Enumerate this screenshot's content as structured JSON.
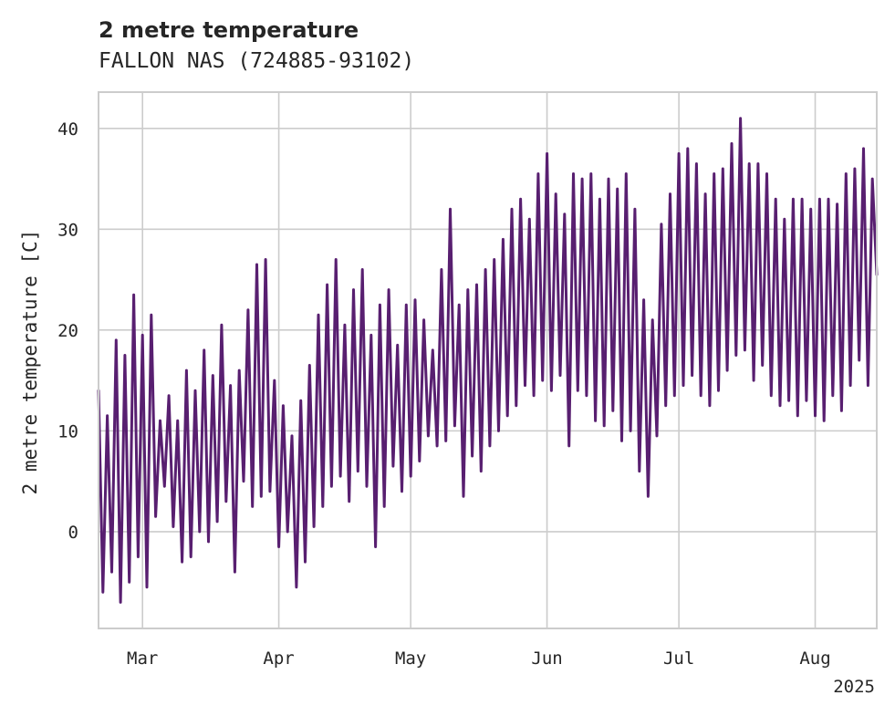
{
  "chart_data": {
    "type": "line",
    "title": "2 metre temperature",
    "subtitle": "FALLON NAS (724885-93102)",
    "ylabel": "2 metre temperature [C]",
    "xlabel": "",
    "x_offset_label": "2025",
    "xlim": [
      "2025-02-19",
      "2025-08-15"
    ],
    "ylim": [
      -9.6,
      43.6
    ],
    "x_ticks": [
      {
        "date": "2025-03-01",
        "label": "Mar"
      },
      {
        "date": "2025-04-01",
        "label": "Apr"
      },
      {
        "date": "2025-05-01",
        "label": "May"
      },
      {
        "date": "2025-06-01",
        "label": "Jun"
      },
      {
        "date": "2025-07-01",
        "label": "Jul"
      },
      {
        "date": "2025-08-01",
        "label": "Aug"
      }
    ],
    "y_ticks": [
      0,
      10,
      20,
      30,
      40
    ],
    "grid": true,
    "legend": "none",
    "series": [
      {
        "color": "#581f70",
        "points": [
          [
            "2025-02-19",
            14.0
          ],
          [
            "2025-02-20",
            -6.0
          ],
          [
            "2025-02-21",
            11.5
          ],
          [
            "2025-02-22",
            -4.0
          ],
          [
            "2025-02-23",
            19.0
          ],
          [
            "2025-02-24",
            -7.0
          ],
          [
            "2025-02-25",
            17.5
          ],
          [
            "2025-02-26",
            -5.0
          ],
          [
            "2025-02-27",
            23.5
          ],
          [
            "2025-02-28",
            -2.5
          ],
          [
            "2025-03-01",
            19.5
          ],
          [
            "2025-03-02",
            -5.5
          ],
          [
            "2025-03-03",
            21.5
          ],
          [
            "2025-03-04",
            1.5
          ],
          [
            "2025-03-05",
            11.0
          ],
          [
            "2025-03-06",
            4.5
          ],
          [
            "2025-03-07",
            13.5
          ],
          [
            "2025-03-08",
            0.5
          ],
          [
            "2025-03-09",
            11.0
          ],
          [
            "2025-03-10",
            -3.0
          ],
          [
            "2025-03-11",
            16.0
          ],
          [
            "2025-03-12",
            -2.5
          ],
          [
            "2025-03-13",
            14.0
          ],
          [
            "2025-03-14",
            0.0
          ],
          [
            "2025-03-15",
            18.0
          ],
          [
            "2025-03-16",
            -1.0
          ],
          [
            "2025-03-17",
            15.5
          ],
          [
            "2025-03-18",
            1.0
          ],
          [
            "2025-03-19",
            20.5
          ],
          [
            "2025-03-20",
            3.0
          ],
          [
            "2025-03-21",
            14.5
          ],
          [
            "2025-03-22",
            -4.0
          ],
          [
            "2025-03-23",
            16.0
          ],
          [
            "2025-03-24",
            5.0
          ],
          [
            "2025-03-25",
            22.0
          ],
          [
            "2025-03-26",
            2.5
          ],
          [
            "2025-03-27",
            26.5
          ],
          [
            "2025-03-28",
            3.5
          ],
          [
            "2025-03-29",
            27.0
          ],
          [
            "2025-03-30",
            4.0
          ],
          [
            "2025-03-31",
            15.0
          ],
          [
            "2025-04-01",
            -1.5
          ],
          [
            "2025-04-02",
            12.5
          ],
          [
            "2025-04-03",
            0.0
          ],
          [
            "2025-04-04",
            9.5
          ],
          [
            "2025-04-05",
            -5.5
          ],
          [
            "2025-04-06",
            13.0
          ],
          [
            "2025-04-07",
            -3.0
          ],
          [
            "2025-04-08",
            16.5
          ],
          [
            "2025-04-09",
            0.5
          ],
          [
            "2025-04-10",
            21.5
          ],
          [
            "2025-04-11",
            2.5
          ],
          [
            "2025-04-12",
            24.5
          ],
          [
            "2025-04-13",
            4.5
          ],
          [
            "2025-04-14",
            27.0
          ],
          [
            "2025-04-15",
            5.5
          ],
          [
            "2025-04-16",
            20.5
          ],
          [
            "2025-04-17",
            3.0
          ],
          [
            "2025-04-18",
            24.0
          ],
          [
            "2025-04-19",
            6.0
          ],
          [
            "2025-04-20",
            26.0
          ],
          [
            "2025-04-21",
            4.5
          ],
          [
            "2025-04-22",
            19.5
          ],
          [
            "2025-04-23",
            -1.5
          ],
          [
            "2025-04-24",
            22.5
          ],
          [
            "2025-04-25",
            2.5
          ],
          [
            "2025-04-26",
            24.0
          ],
          [
            "2025-04-27",
            6.5
          ],
          [
            "2025-04-28",
            18.5
          ],
          [
            "2025-04-29",
            4.0
          ],
          [
            "2025-04-30",
            22.5
          ],
          [
            "2025-05-01",
            5.5
          ],
          [
            "2025-05-02",
            23.0
          ],
          [
            "2025-05-03",
            7.0
          ],
          [
            "2025-05-04",
            21.0
          ],
          [
            "2025-05-05",
            9.5
          ],
          [
            "2025-05-06",
            18.0
          ],
          [
            "2025-05-07",
            8.5
          ],
          [
            "2025-05-08",
            26.0
          ],
          [
            "2025-05-09",
            9.0
          ],
          [
            "2025-05-10",
            32.0
          ],
          [
            "2025-05-11",
            10.5
          ],
          [
            "2025-05-12",
            22.5
          ],
          [
            "2025-05-13",
            3.5
          ],
          [
            "2025-05-14",
            24.0
          ],
          [
            "2025-05-15",
            7.5
          ],
          [
            "2025-05-16",
            24.5
          ],
          [
            "2025-05-17",
            6.0
          ],
          [
            "2025-05-18",
            26.0
          ],
          [
            "2025-05-19",
            8.5
          ],
          [
            "2025-05-20",
            27.0
          ],
          [
            "2025-05-21",
            10.0
          ],
          [
            "2025-05-22",
            29.0
          ],
          [
            "2025-05-23",
            11.5
          ],
          [
            "2025-05-24",
            32.0
          ],
          [
            "2025-05-25",
            12.5
          ],
          [
            "2025-05-26",
            33.0
          ],
          [
            "2025-05-27",
            14.5
          ],
          [
            "2025-05-28",
            31.0
          ],
          [
            "2025-05-29",
            13.5
          ],
          [
            "2025-05-30",
            35.5
          ],
          [
            "2025-05-31",
            15.0
          ],
          [
            "2025-06-01",
            37.5
          ],
          [
            "2025-06-02",
            14.0
          ],
          [
            "2025-06-03",
            33.5
          ],
          [
            "2025-06-04",
            15.5
          ],
          [
            "2025-06-05",
            31.5
          ],
          [
            "2025-06-06",
            8.5
          ],
          [
            "2025-06-07",
            35.5
          ],
          [
            "2025-06-08",
            14.0
          ],
          [
            "2025-06-09",
            35.0
          ],
          [
            "2025-06-10",
            13.5
          ],
          [
            "2025-06-11",
            35.5
          ],
          [
            "2025-06-12",
            11.0
          ],
          [
            "2025-06-13",
            33.0
          ],
          [
            "2025-06-14",
            10.5
          ],
          [
            "2025-06-15",
            35.0
          ],
          [
            "2025-06-16",
            12.0
          ],
          [
            "2025-06-17",
            34.0
          ],
          [
            "2025-06-18",
            9.0
          ],
          [
            "2025-06-19",
            35.5
          ],
          [
            "2025-06-20",
            10.0
          ],
          [
            "2025-06-21",
            32.0
          ],
          [
            "2025-06-22",
            6.0
          ],
          [
            "2025-06-23",
            23.0
          ],
          [
            "2025-06-24",
            3.5
          ],
          [
            "2025-06-25",
            21.0
          ],
          [
            "2025-06-26",
            9.5
          ],
          [
            "2025-06-27",
            30.5
          ],
          [
            "2025-06-28",
            12.5
          ],
          [
            "2025-06-29",
            33.5
          ],
          [
            "2025-06-30",
            13.5
          ],
          [
            "2025-07-01",
            37.5
          ],
          [
            "2025-07-02",
            14.5
          ],
          [
            "2025-07-03",
            38.0
          ],
          [
            "2025-07-04",
            15.5
          ],
          [
            "2025-07-05",
            36.5
          ],
          [
            "2025-07-06",
            13.5
          ],
          [
            "2025-07-07",
            33.5
          ],
          [
            "2025-07-08",
            12.5
          ],
          [
            "2025-07-09",
            35.5
          ],
          [
            "2025-07-10",
            14.0
          ],
          [
            "2025-07-11",
            36.0
          ],
          [
            "2025-07-12",
            16.0
          ],
          [
            "2025-07-13",
            38.5
          ],
          [
            "2025-07-14",
            17.5
          ],
          [
            "2025-07-15",
            41.0
          ],
          [
            "2025-07-16",
            18.0
          ],
          [
            "2025-07-17",
            36.5
          ],
          [
            "2025-07-18",
            15.0
          ],
          [
            "2025-07-19",
            36.5
          ],
          [
            "2025-07-20",
            16.5
          ],
          [
            "2025-07-21",
            35.5
          ],
          [
            "2025-07-22",
            13.5
          ],
          [
            "2025-07-23",
            33.0
          ],
          [
            "2025-07-24",
            12.5
          ],
          [
            "2025-07-25",
            31.0
          ],
          [
            "2025-07-26",
            13.0
          ],
          [
            "2025-07-27",
            33.0
          ],
          [
            "2025-07-28",
            11.5
          ],
          [
            "2025-07-29",
            33.0
          ],
          [
            "2025-07-30",
            13.0
          ],
          [
            "2025-07-31",
            32.0
          ],
          [
            "2025-08-01",
            11.5
          ],
          [
            "2025-08-02",
            33.0
          ],
          [
            "2025-08-03",
            11.0
          ],
          [
            "2025-08-04",
            33.0
          ],
          [
            "2025-08-05",
            13.5
          ],
          [
            "2025-08-06",
            32.5
          ],
          [
            "2025-08-07",
            12.0
          ],
          [
            "2025-08-08",
            35.5
          ],
          [
            "2025-08-09",
            14.5
          ],
          [
            "2025-08-10",
            36.0
          ],
          [
            "2025-08-11",
            17.0
          ],
          [
            "2025-08-12",
            38.0
          ],
          [
            "2025-08-13",
            14.5
          ],
          [
            "2025-08-14",
            35.0
          ],
          [
            "2025-08-15",
            25.5
          ]
        ]
      }
    ]
  }
}
